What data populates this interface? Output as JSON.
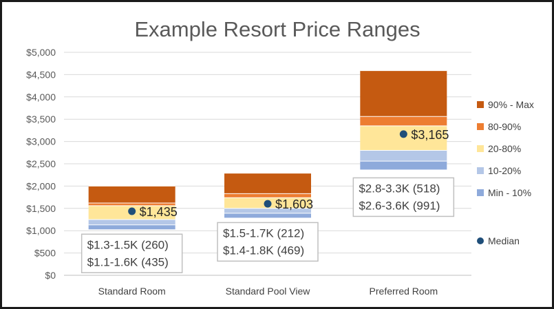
{
  "chart_data": {
    "type": "bar",
    "stacked": true,
    "title": "Example Resort Price Ranges",
    "xlabel": "",
    "ylabel": "",
    "ylim": [
      0,
      5000
    ],
    "y_tick_labels": [
      "$0",
      "$500",
      "$1,000",
      "$1,500",
      "$2,000",
      "$2,500",
      "$3,000",
      "$3,500",
      "$4,000",
      "$4,500",
      "$5,000"
    ],
    "grid": true,
    "legend_position": "right",
    "categories": [
      "Standard Room",
      "Standard Pool View",
      "Preferred Room"
    ],
    "series": [
      {
        "name": "Min - 10%",
        "color": "#8eaadb",
        "values": [
          [
            1030,
            1130
          ],
          [
            1290,
            1390
          ],
          [
            2370,
            2560
          ]
        ]
      },
      {
        "name": "10-20%",
        "color": "#b4c7e7",
        "values": [
          [
            1130,
            1250
          ],
          [
            1390,
            1500
          ],
          [
            2560,
            2800
          ]
        ]
      },
      {
        "name": "20-80%",
        "color": "#ffe699",
        "values": [
          [
            1250,
            1560
          ],
          [
            1500,
            1740
          ],
          [
            2800,
            3350
          ]
        ]
      },
      {
        "name": "80-90%",
        "color": "#ed7d31",
        "values": [
          [
            1560,
            1620
          ],
          [
            1740,
            1830
          ],
          [
            3350,
            3560
          ]
        ]
      },
      {
        "name": "90% - Max",
        "color": "#c55a11",
        "values": [
          [
            1620,
            2000
          ],
          [
            1830,
            2290
          ],
          [
            3560,
            4590
          ]
        ]
      }
    ],
    "median": {
      "name": "Median",
      "color": "#1f4e79",
      "values": [
        1435,
        1603,
        3165
      ],
      "labels": [
        "$1,435",
        "$1,603",
        "$3,165"
      ]
    },
    "annotations": [
      {
        "lines": [
          "$1.3-1.5K (260)",
          "$1.1-1.6K (435)"
        ]
      },
      {
        "lines": [
          "$1.5-1.7K (212)",
          "$1.4-1.8K (469)"
        ]
      },
      {
        "lines": [
          "$2.8-3.3K (518)",
          "$2.6-3.6K (991)"
        ]
      }
    ]
  }
}
